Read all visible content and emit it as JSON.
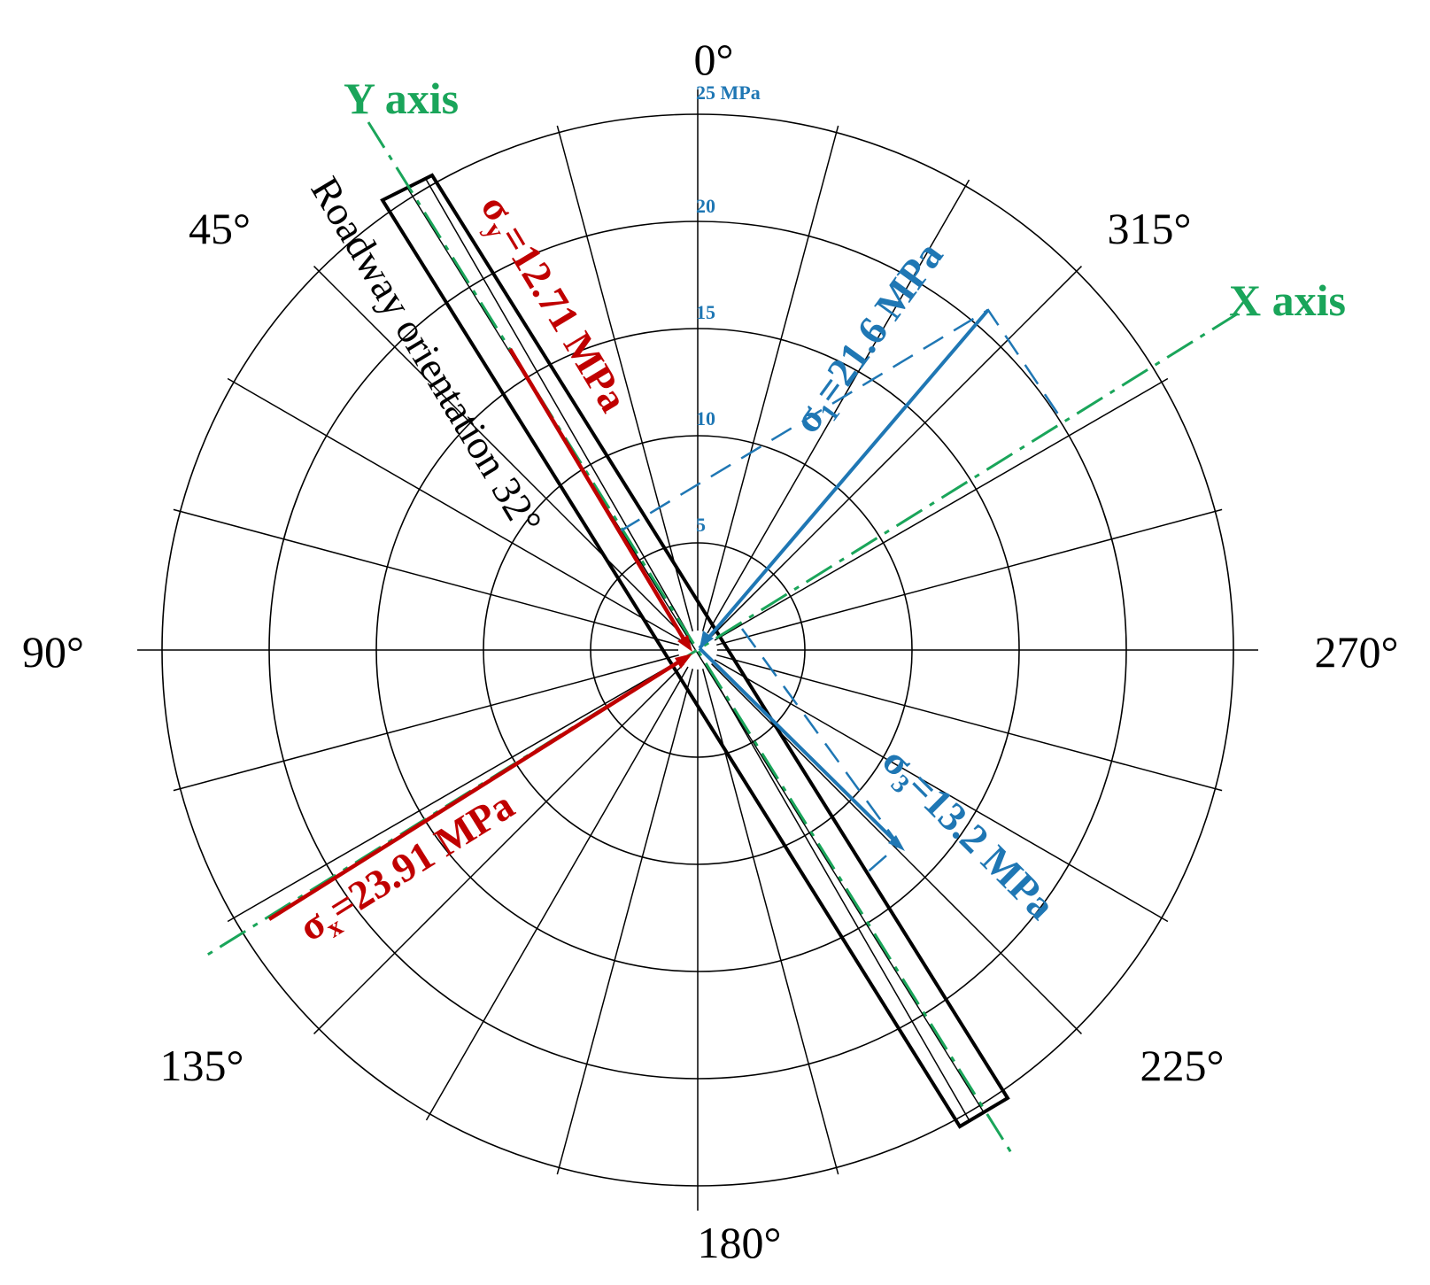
{
  "angles": [
    {
      "value": 0,
      "label": "0°"
    },
    {
      "value": 45,
      "label": "45°"
    },
    {
      "value": 90,
      "label": "90°"
    },
    {
      "value": 135,
      "label": "135°"
    },
    {
      "value": 180,
      "label": "180°"
    },
    {
      "value": 225,
      "label": "225°"
    },
    {
      "value": 270,
      "label": "270°"
    },
    {
      "value": 315,
      "label": "315°"
    }
  ],
  "rings": [
    5,
    10,
    15,
    20,
    25
  ],
  "ring_labels": [
    {
      "value": 5,
      "text": "5"
    },
    {
      "value": 10,
      "text": "10"
    },
    {
      "value": 15,
      "text": "15"
    },
    {
      "value": 20,
      "text": "20"
    },
    {
      "value": 25,
      "text": "25  MPa"
    }
  ],
  "spoke_step_deg": 15,
  "axes": {
    "x_label": "X axis",
    "y_label": "Y axis",
    "color": "#1aa55a"
  },
  "roadway": {
    "label": "Roadway orientation 32°",
    "angle_deg": 32
  },
  "stresses": [
    {
      "id": "sigma_y",
      "symbol": "σ",
      "sub": "y",
      "text": "=12.71 MPa",
      "value": 12.71,
      "color": "#c00000"
    },
    {
      "id": "sigma_x",
      "symbol": "σ",
      "sub": "x",
      "text": "=23.91 MPa",
      "value": 23.91,
      "color": "#c00000"
    },
    {
      "id": "sigma_1",
      "symbol": "σ",
      "sub": "1",
      "text": "=21.6 MPa",
      "value": 21.6,
      "color": "#1f77b4"
    },
    {
      "id": "sigma_3",
      "symbol": "σ",
      "sub": "3",
      "text": "=13.2 MPa",
      "value": 13.2,
      "color": "#1f77b4"
    }
  ]
}
